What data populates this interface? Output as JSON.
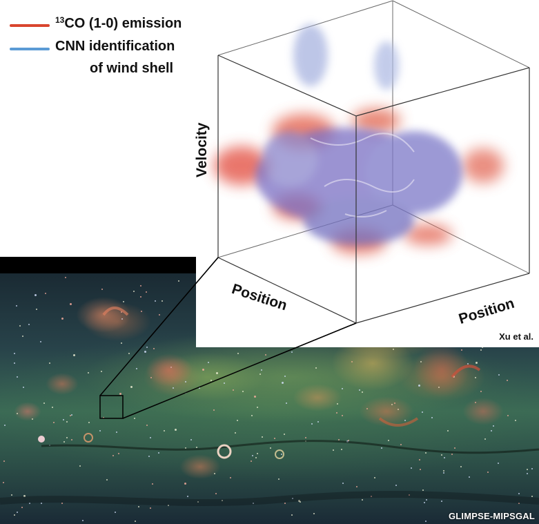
{
  "legend": {
    "items": [
      {
        "superscript": "13",
        "label": "CO (1-0) emission",
        "color": "#d9452e"
      },
      {
        "superscript": "",
        "label": "CNN identification",
        "label_line2": "of wind shell",
        "color": "#5b9bd5"
      }
    ]
  },
  "cube": {
    "axis_velocity": "Velocity",
    "axis_position_left": "Position",
    "axis_position_right": "Position",
    "credit": "Xu et al."
  },
  "survey": {
    "credit": "GLIMPSE-MIPSGAL"
  },
  "colors": {
    "co_emission": "#d9452e",
    "wind_shell": "#6a6fc0"
  }
}
